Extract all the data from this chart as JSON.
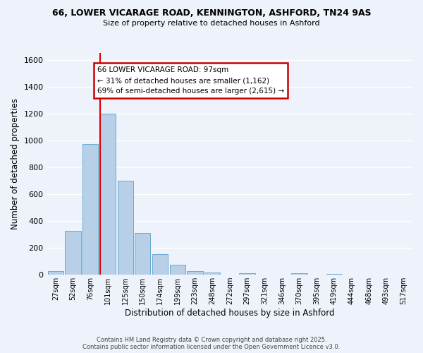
{
  "title_line1": "66, LOWER VICARAGE ROAD, KENNINGTON, ASHFORD, TN24 9AS",
  "title_line2": "Size of property relative to detached houses in Ashford",
  "xlabel": "Distribution of detached houses by size in Ashford",
  "ylabel": "Number of detached properties",
  "bar_labels": [
    "27sqm",
    "52sqm",
    "76sqm",
    "101sqm",
    "125sqm",
    "150sqm",
    "174sqm",
    "199sqm",
    "223sqm",
    "248sqm",
    "272sqm",
    "297sqm",
    "321sqm",
    "346sqm",
    "370sqm",
    "395sqm",
    "419sqm",
    "444sqm",
    "468sqm",
    "493sqm",
    "517sqm"
  ],
  "bar_values": [
    25,
    325,
    975,
    1200,
    700,
    310,
    155,
    75,
    25,
    15,
    0,
    10,
    0,
    0,
    10,
    0,
    5,
    0,
    0,
    0,
    2
  ],
  "bar_color": "#b8cfe8",
  "bar_edge_color": "#6aaad4",
  "background_color": "#eef2fb",
  "grid_color": "#ffffff",
  "vline_index": 3,
  "vline_color": "#dd0000",
  "annotation_title": "66 LOWER VICARAGE ROAD: 97sqm",
  "annotation_line2": "← 31% of detached houses are smaller (1,162)",
  "annotation_line3": "69% of semi-detached houses are larger (2,615) →",
  "annotation_box_edge": "#cc0000",
  "ylim": [
    0,
    1650
  ],
  "yticks": [
    0,
    200,
    400,
    600,
    800,
    1000,
    1200,
    1400,
    1600
  ],
  "footer_line1": "Contains HM Land Registry data © Crown copyright and database right 2025.",
  "footer_line2": "Contains public sector information licensed under the Open Government Licence v3.0."
}
